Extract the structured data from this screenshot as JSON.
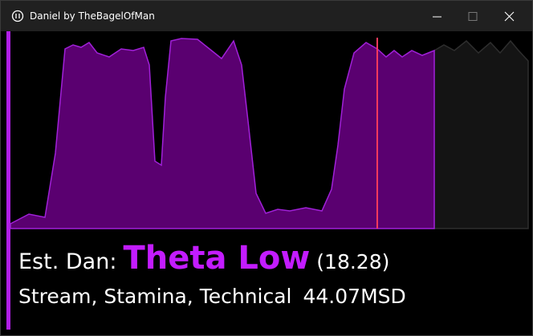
{
  "window": {
    "title": "Daniel by TheBagelOfMan"
  },
  "result": {
    "label": "Est. Dan:",
    "dan": "Theta Low",
    "score": "(18.28)",
    "skills": "Stream, Stamina, Technical",
    "msd": "44.07MSD"
  }
}
